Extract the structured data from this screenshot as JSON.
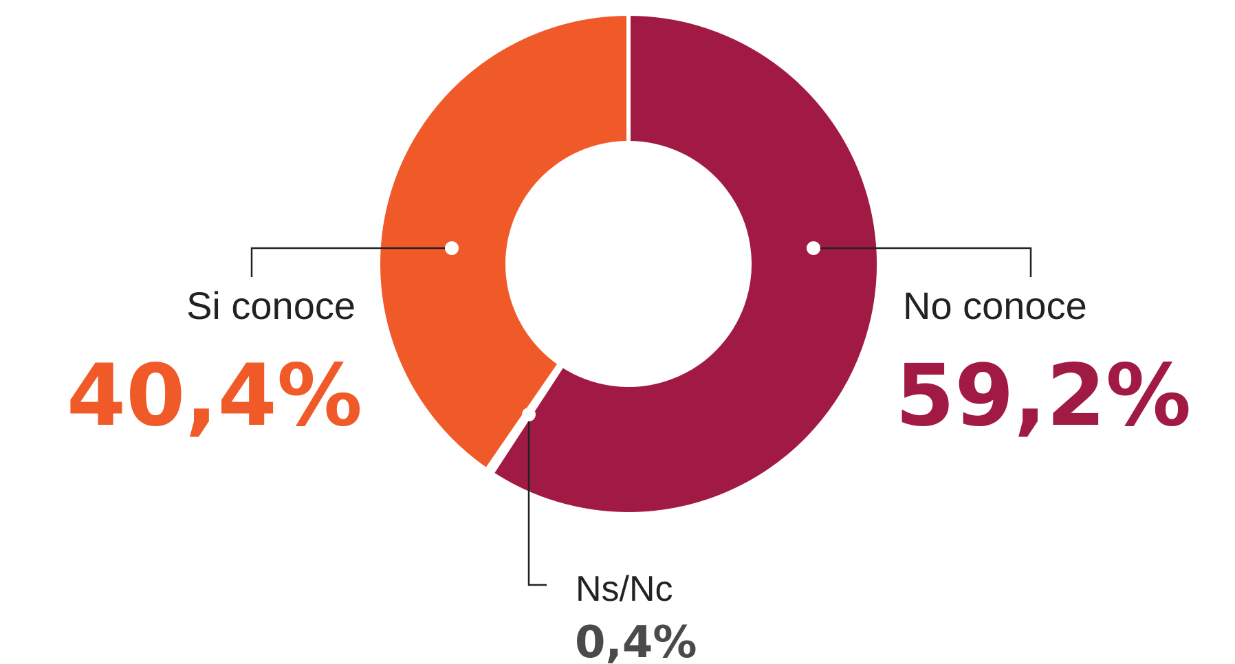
{
  "chart_data": {
    "type": "pie",
    "donut": true,
    "slices": [
      {
        "label": "No conoce",
        "value": 59.2,
        "value_label": "59,2%",
        "color": "#A11A43"
      },
      {
        "label": "Ns/Nc",
        "value": 0.4,
        "value_label": "0,4%",
        "color": "#FFFFFF"
      },
      {
        "label": "Si conoce",
        "value": 40.4,
        "value_label": "40,4%",
        "color": "#EF5A28"
      }
    ],
    "colors": {
      "callout_line": "#222222",
      "label_text": "#222222",
      "nsnc_value_text": "#4A4A4A"
    }
  }
}
